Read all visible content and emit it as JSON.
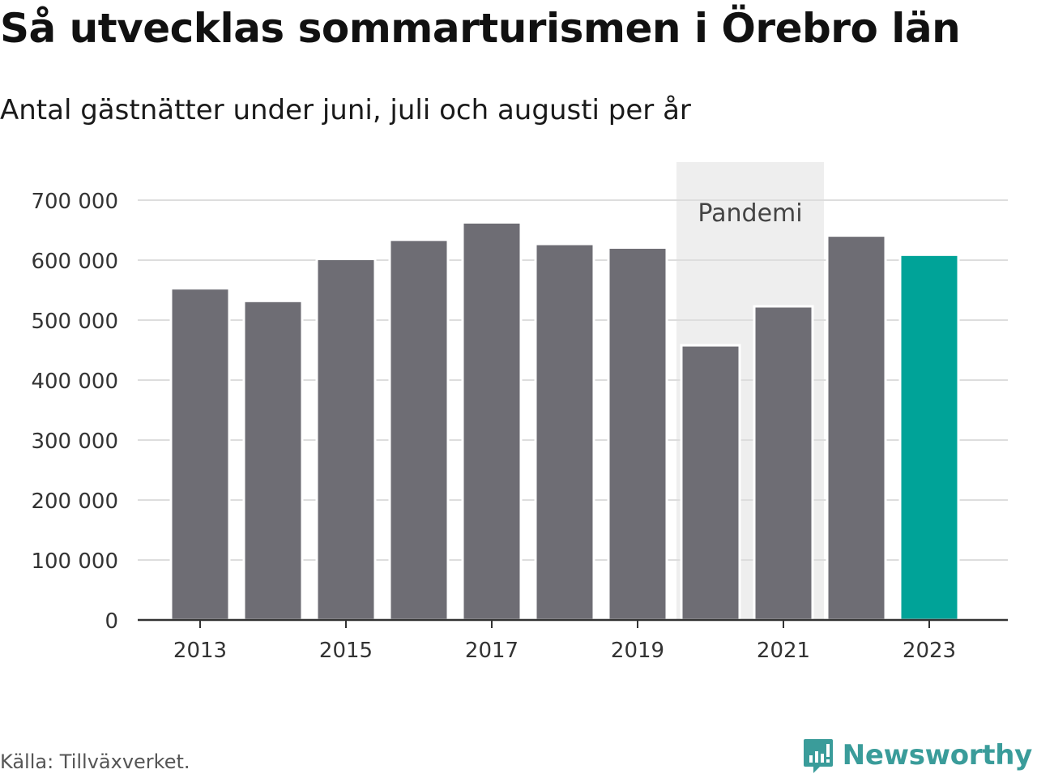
{
  "title": "Så utvecklas sommarturismen i Örebro län",
  "subtitle": "Antal gästnätter under juni, juli och augusti per år",
  "source": "Källa: Tillväxverket.",
  "brand": {
    "name": "Newsworthy",
    "icon": "newsworthy-logo-icon",
    "color": "#3a9c9a"
  },
  "chart_data": {
    "type": "bar",
    "categories": [
      "2013",
      "2014",
      "2015",
      "2016",
      "2017",
      "2018",
      "2019",
      "2020",
      "2021",
      "2022",
      "2023"
    ],
    "values": [
      553000,
      532000,
      602000,
      634000,
      663000,
      627000,
      621000,
      458000,
      523000,
      641000,
      609000
    ],
    "x_tick_labels": [
      "2013",
      "2015",
      "2017",
      "2019",
      "2021",
      "2023"
    ],
    "y_ticks": [
      0,
      100000,
      200000,
      300000,
      400000,
      500000,
      600000,
      700000
    ],
    "y_tick_labels": [
      "0",
      "100 000",
      "200 000",
      "300 000",
      "400 000",
      "500 000",
      "600 000",
      "700 000"
    ],
    "ylim": [
      0,
      700000
    ],
    "xlabel": "",
    "ylabel": "",
    "grid": true,
    "bar_color": "#6e6d74",
    "highlight_category": "2023",
    "highlight_color": "#00a398",
    "annotation": {
      "label": "Pandemi",
      "from": "2020",
      "to": "2021",
      "color": "#eeeeee"
    }
  }
}
